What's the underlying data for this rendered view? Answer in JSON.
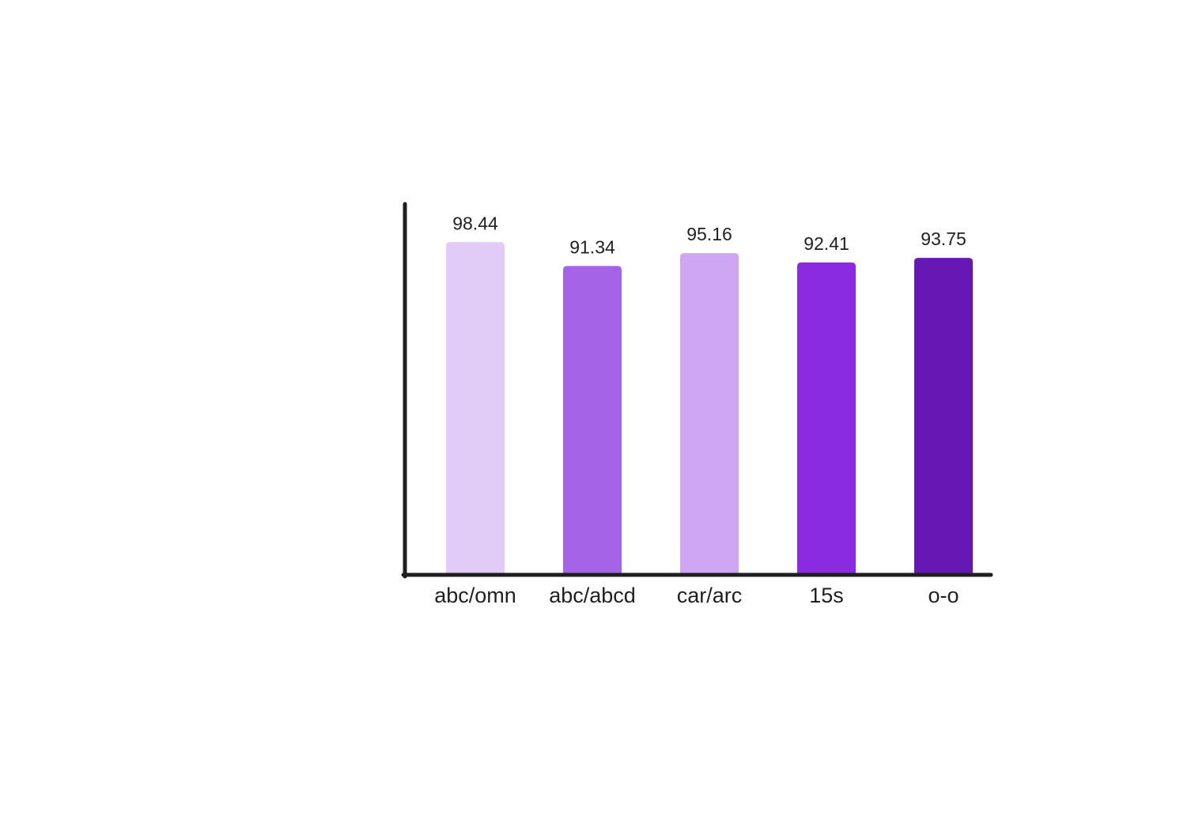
{
  "chart_data": {
    "type": "bar",
    "categories": [
      "abc/omn",
      "abc/abcd",
      "car/arc",
      "15s",
      "o-o"
    ],
    "values": [
      98.44,
      91.34,
      95.16,
      92.41,
      93.75
    ],
    "colors": [
      "#e1cbf7",
      "#a564e8",
      "#cfa6f3",
      "#8a2be2",
      "#6718b4"
    ],
    "ylim": [
      0,
      110
    ]
  }
}
